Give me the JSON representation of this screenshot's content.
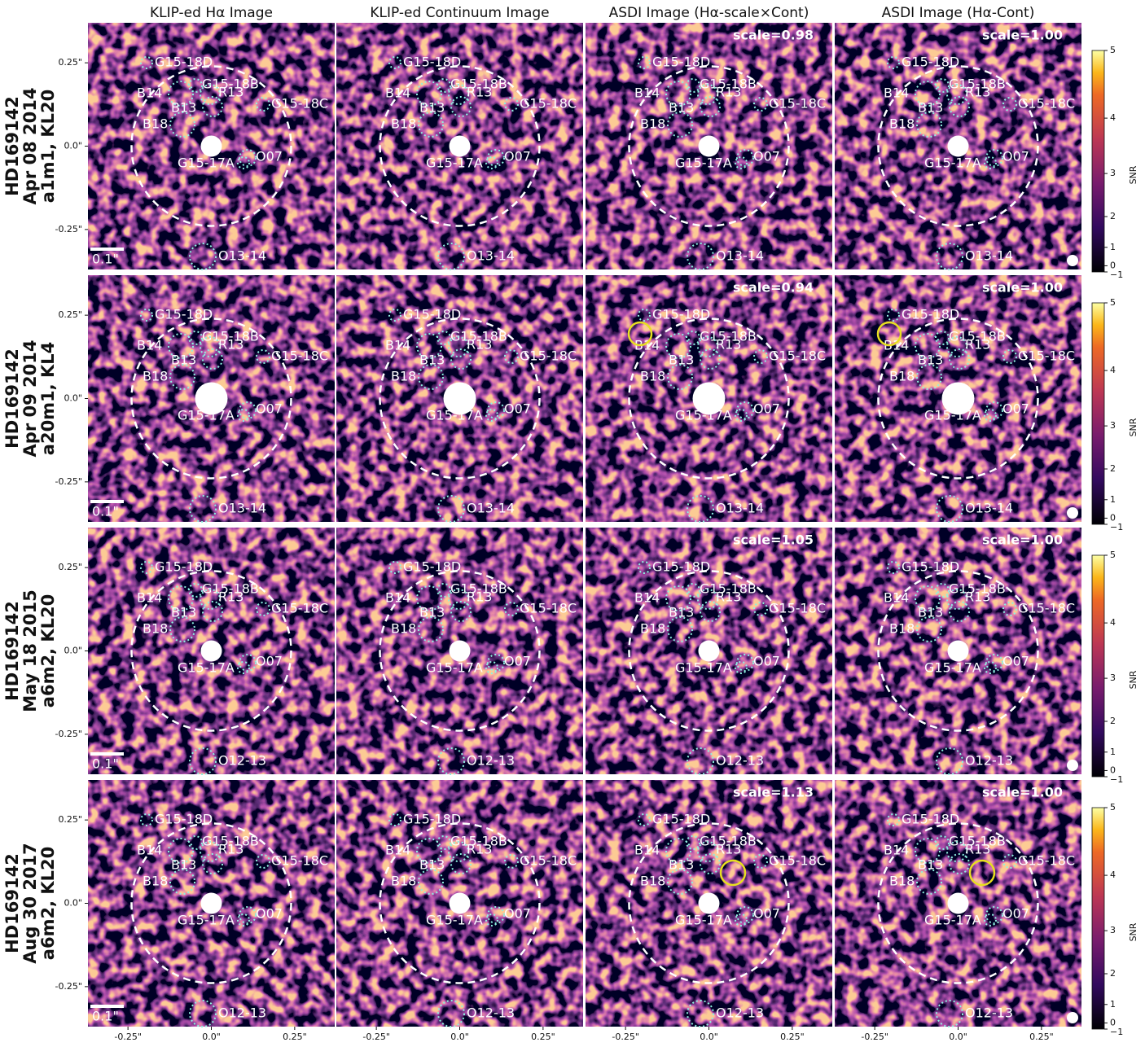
{
  "columns": [
    "KLIP-ed Hα Image",
    "KLIP-ed Continuum Image",
    "ASDI Image (Hα-scale×Cont)",
    "ASDI Image (Hα-Cont)"
  ],
  "rows": [
    {
      "label": [
        "HD169142",
        "Apr 08 2014",
        "a1m1, KL20"
      ],
      "scales": [
        "scale=0.98",
        "scale=1.00"
      ],
      "south_source": "O13-14"
    },
    {
      "label": [
        "HD169142",
        "Apr 09 2014",
        "a20m1, KL4"
      ],
      "scales": [
        "scale=0.94",
        "scale=1.00"
      ],
      "south_source": "O13-14"
    },
    {
      "label": [
        "HD169142",
        "May 18 2015",
        "a6m2, KL20"
      ],
      "scales": [
        "scale=1.05",
        "scale=1.00"
      ],
      "south_source": "O12-13"
    },
    {
      "label": [
        "HD169142",
        "Aug 30 2017",
        "a6m2, KL20"
      ],
      "scales": [
        "scale=1.13",
        "scale=1.00"
      ],
      "south_source": "O12-13"
    }
  ],
  "sources": [
    "G15-18D",
    "G15-18B",
    "B14",
    "R13",
    "B13",
    "G15-18C",
    "B18",
    "O07",
    "G15-17A"
  ],
  "scale_bar": "0.1\"",
  "axis": {
    "lim": [
      -0.37,
      0.37
    ],
    "ticks": [
      {
        "value": -0.25,
        "label": "-0.25\""
      },
      {
        "value": 0,
        "label": "0.0\""
      },
      {
        "value": 0.25,
        "label": "0.25\""
      }
    ]
  },
  "colorbar": {
    "label": "SNR",
    "lim": [
      -1,
      5
    ],
    "ticks": [
      5,
      4,
      3,
      2,
      1,
      0,
      {
        "value": -1,
        "label": "−1"
      }
    ]
  }
}
